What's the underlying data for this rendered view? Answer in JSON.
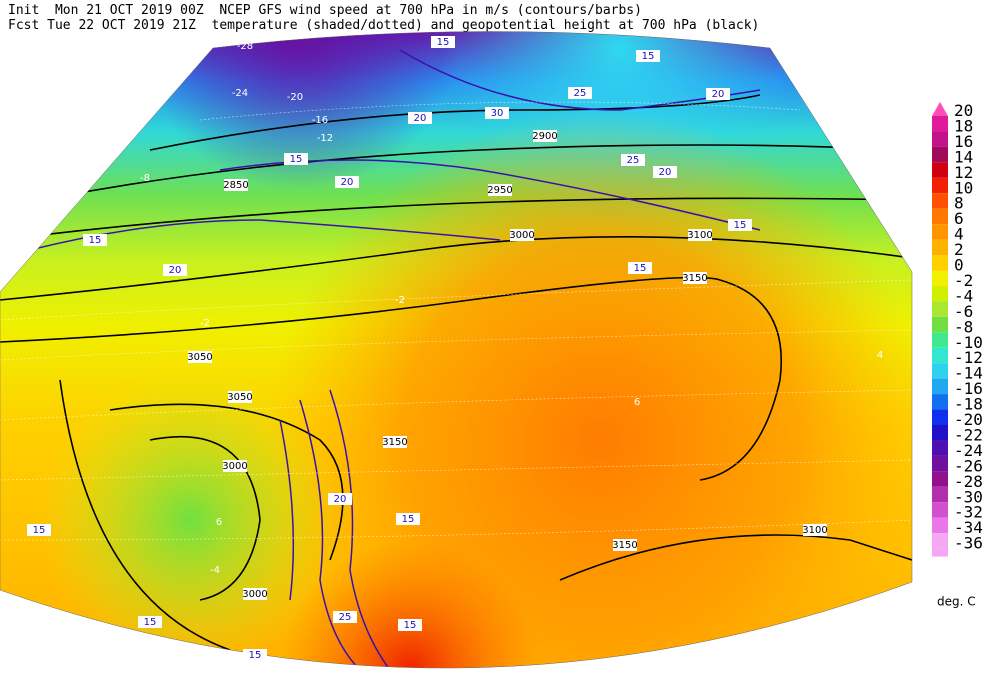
{
  "header": {
    "line1": "Init  Mon 21 OCT 2019 00Z  NCEP GFS wind speed at 700 hPa in m/s (contours/barbs)",
    "line2": "Fcst Tue 22 OCT 2019 21Z  temperature (shaded/dotted) and geopotential height at 700 hPa (black)"
  },
  "colorbar": {
    "units": "deg. C",
    "ticks": [
      20,
      18,
      16,
      14,
      12,
      10,
      8,
      6,
      4,
      2,
      0,
      -2,
      -4,
      -6,
      -8,
      -10,
      -12,
      -14,
      -16,
      -18,
      -20,
      -22,
      -24,
      -26,
      -28,
      -30,
      -32,
      -34,
      -36
    ],
    "colors": [
      "#ff4db8",
      "#e01a9a",
      "#c0128a",
      "#a00a5a",
      "#d00010",
      "#f02000",
      "#ff5000",
      "#ff7800",
      "#ff9600",
      "#ffb000",
      "#ffd000",
      "#f0f000",
      "#d0f000",
      "#a8e830",
      "#70e040",
      "#40e890",
      "#30e8d0",
      "#30d0f0",
      "#20a8f0",
      "#1070f0",
      "#1030f0",
      "#2010c8",
      "#5010b0",
      "#7010a0",
      "#901090",
      "#b030b0",
      "#d050d0",
      "#e878e8",
      "#f4a8f4"
    ]
  },
  "map": {
    "height_labels": [
      3150,
      3100,
      3050,
      3050,
      3000,
      3000,
      3000,
      3150,
      3100,
      3150,
      2950,
      2900,
      2850
    ],
    "wind_labels": [
      15,
      20,
      20,
      15,
      25,
      30,
      25,
      20,
      15,
      20,
      15,
      20,
      15,
      15,
      15,
      20,
      25,
      15,
      15,
      15,
      15
    ],
    "temperature_labels": [
      -28,
      -24,
      -20,
      -16,
      -12,
      -8,
      -2,
      6,
      6,
      4,
      -4,
      -2
    ]
  }
}
